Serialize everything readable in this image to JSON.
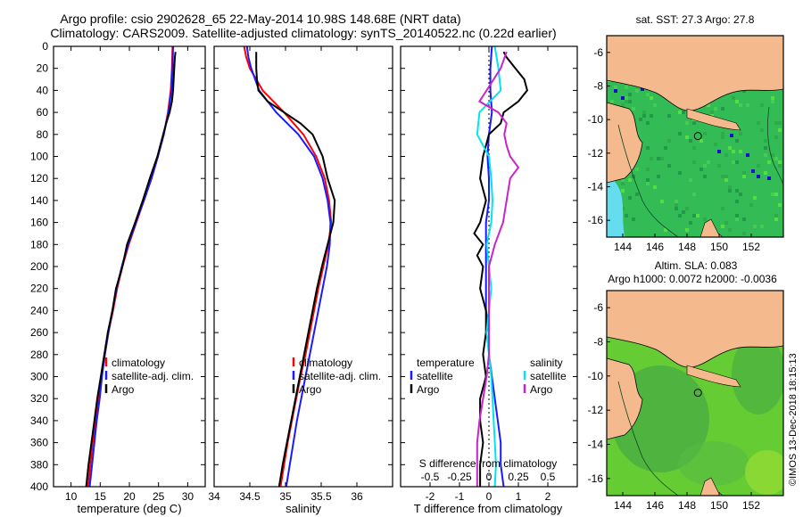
{
  "header": {
    "line1": "Argo profile: csio 2902628_65 22-May-2014 10.98S 148.68E (NRT data)",
    "line2": "Climatology: CARS2009. Satellite-adjusted climatology: synTS_20140522.nc (0.22d earlier)"
  },
  "colors": {
    "climatology": "#ff0000",
    "satellite": "#1a1aff",
    "argo": "#000000",
    "salinity_satellite": "#00e5ee",
    "salinity_argo": "#cc22cc",
    "land": "#f5b98e",
    "ocean_sst": "#33bb55",
    "ocean_sla": "#66cc33"
  },
  "chart_data": [
    {
      "type": "line",
      "title": "",
      "xlabel": "temperature (deg C)",
      "ylabel": "depth",
      "xlim": [
        7,
        33
      ],
      "ylim": [
        400,
        0
      ],
      "xticks": [
        10,
        15,
        20,
        25,
        30
      ],
      "yticks": [
        0,
        20,
        40,
        60,
        80,
        100,
        120,
        140,
        160,
        180,
        200,
        220,
        240,
        260,
        280,
        300,
        320,
        340,
        360,
        380,
        400
      ],
      "legend": [
        "climatology",
        "satellite-adj. clim.",
        "Argo"
      ],
      "legend_position": "lower-right",
      "series": [
        {
          "name": "climatology",
          "color_key": "climatology",
          "y": [
            0,
            20,
            40,
            60,
            80,
            100,
            120,
            140,
            160,
            180,
            200,
            220,
            240,
            260,
            280,
            300,
            320,
            340,
            360,
            380,
            400
          ],
          "x": [
            27.4,
            27.3,
            27.1,
            26.6,
            25.9,
            24.9,
            23.8,
            22.5,
            21.2,
            19.9,
            18.8,
            17.9,
            17.2,
            16.4,
            15.8,
            15.2,
            14.7,
            14.2,
            13.7,
            13.3,
            12.9
          ]
        },
        {
          "name": "satellite-adj. clim.",
          "color_key": "satellite",
          "y": [
            0,
            20,
            40,
            60,
            80,
            100,
            120,
            140,
            160,
            180,
            200,
            220,
            240,
            260,
            280,
            300,
            320,
            340,
            360,
            380,
            400
          ],
          "x": [
            27.5,
            27.4,
            27.2,
            26.7,
            25.9,
            24.9,
            23.8,
            22.5,
            21.1,
            19.8,
            18.7,
            17.8,
            17.1,
            16.4,
            15.8,
            15.3,
            14.9,
            14.4,
            14.0,
            13.6,
            13.2
          ]
        },
        {
          "name": "Argo",
          "color_key": "argo",
          "y": [
            5,
            10,
            20,
            40,
            50,
            60,
            70,
            80,
            100,
            120,
            140,
            160,
            180,
            200,
            220,
            240,
            260,
            280,
            300,
            320,
            340,
            360,
            380,
            400
          ],
          "x": [
            27.9,
            27.8,
            27.7,
            27.5,
            27.3,
            26.9,
            26.3,
            25.8,
            24.8,
            23.5,
            22.3,
            21.0,
            19.6,
            18.8,
            17.7,
            17.1,
            16.3,
            15.7,
            15.1,
            14.5,
            14.0,
            13.5,
            13.0,
            12.6
          ]
        }
      ]
    },
    {
      "type": "line",
      "title": "",
      "xlabel": "salinity",
      "ylabel": "",
      "xlim": [
        34,
        36.5
      ],
      "ylim": [
        400,
        0
      ],
      "xticks": [
        34,
        34.5,
        35,
        35.5,
        36
      ],
      "legend": [
        "climatology",
        "satellite-adj. clim.",
        "Argo"
      ],
      "legend_position": "lower-right",
      "series": [
        {
          "name": "climatology",
          "color_key": "climatology",
          "y": [
            0,
            10,
            20,
            40,
            60,
            80,
            100,
            120,
            140,
            160,
            180,
            200,
            220,
            240,
            260,
            280,
            300,
            320,
            340,
            360,
            380,
            400
          ],
          "x": [
            34.42,
            34.45,
            34.5,
            34.68,
            34.98,
            35.25,
            35.43,
            35.55,
            35.61,
            35.64,
            35.6,
            35.53,
            35.46,
            35.4,
            35.34,
            35.28,
            35.21,
            35.15,
            35.09,
            35.03,
            34.98,
            34.93
          ]
        },
        {
          "name": "satellite-adj. clim.",
          "color_key": "satellite",
          "y": [
            0,
            10,
            20,
            40,
            60,
            80,
            100,
            120,
            140,
            160,
            180,
            200,
            220,
            240,
            260,
            280,
            300,
            320,
            340,
            360,
            380,
            400
          ],
          "x": [
            34.46,
            34.48,
            34.52,
            34.63,
            34.87,
            35.18,
            35.4,
            35.52,
            35.59,
            35.63,
            35.62,
            35.58,
            35.52,
            35.46,
            35.4,
            35.34,
            35.28,
            35.22,
            35.16,
            35.11,
            35.06,
            35.01
          ]
        },
        {
          "name": "Argo",
          "color_key": "argo",
          "y": [
            5,
            10,
            20,
            30,
            40,
            50,
            60,
            70,
            80,
            100,
            120,
            140,
            160,
            180,
            200,
            220,
            240,
            260,
            280,
            300,
            320,
            340,
            360,
            380,
            400
          ],
          "x": [
            34.59,
            34.59,
            34.59,
            34.6,
            34.62,
            34.75,
            34.98,
            35.21,
            35.38,
            35.52,
            35.59,
            35.69,
            35.67,
            35.59,
            35.51,
            35.44,
            35.38,
            35.32,
            35.26,
            35.2,
            35.14,
            35.08,
            35.02,
            34.96,
            34.91
          ]
        }
      ]
    },
    {
      "type": "line",
      "title": "",
      "xlabel": "T difference from climatology",
      "x2label": "S difference from climatology",
      "xlim": [
        -3,
        3
      ],
      "x2lim": [
        -0.75,
        0.75
      ],
      "ylim": [
        400,
        0
      ],
      "xticks": [
        -2,
        -1,
        0,
        1,
        2
      ],
      "x2ticks": [
        "-0.5",
        "-0.25",
        "0",
        "0.25",
        "0.5"
      ],
      "legend_temperature": {
        "header": "temperature",
        "items": [
          "satellite",
          "Argo"
        ]
      },
      "legend_salinity": {
        "header": "salinity",
        "items": [
          "satellite",
          "Argo"
        ]
      },
      "series": [
        {
          "name": "temperature satellite",
          "color_key": "satellite",
          "y": [
            0,
            20,
            40,
            60,
            80,
            100,
            120,
            140,
            160,
            180,
            200,
            220,
            240,
            260,
            280,
            300,
            320,
            340,
            360,
            380,
            400
          ],
          "x": [
            0.1,
            0.05,
            0.05,
            0.1,
            0.0,
            -0.05,
            0.0,
            0.0,
            -0.1,
            -0.1,
            -0.1,
            -0.1,
            -0.1,
            0.0,
            0.0,
            0.1,
            0.2,
            0.3,
            0.4,
            0.4,
            0.5
          ]
        },
        {
          "name": "temperature Argo",
          "color_key": "argo",
          "y": [
            5,
            10,
            20,
            30,
            40,
            50,
            60,
            70,
            80,
            90,
            100,
            120,
            140,
            160,
            170,
            180,
            190,
            200,
            220,
            240,
            260,
            280,
            300,
            320,
            340,
            360,
            380,
            400
          ],
          "x": [
            0.5,
            0.6,
            0.9,
            1.2,
            1.3,
            1.0,
            0.5,
            0.4,
            0.0,
            -0.1,
            -0.2,
            -0.3,
            -0.1,
            -0.3,
            -0.5,
            -0.2,
            -0.4,
            -0.2,
            -0.3,
            -0.1,
            -0.1,
            -0.2,
            -0.1,
            -0.3,
            -0.3,
            -0.2,
            -0.3,
            -0.3
          ]
        },
        {
          "name": "salinity satellite",
          "color_key": "salinity_satellite",
          "y": [
            0,
            20,
            40,
            60,
            80,
            100,
            120,
            140,
            160,
            180,
            200,
            220,
            240,
            260,
            280,
            300,
            320,
            340,
            360,
            380,
            400
          ],
          "x": [
            0.05,
            0.08,
            0.1,
            -0.08,
            -0.1,
            0.0,
            0.02,
            0.03,
            0.02,
            -0.02,
            0.0,
            0.02,
            0.0,
            -0.02,
            0.0,
            0.02,
            0.03,
            0.04,
            0.05,
            0.06,
            0.05
          ]
        },
        {
          "name": "salinity Argo",
          "color_key": "salinity_argo",
          "y": [
            5,
            20,
            30,
            40,
            50,
            60,
            70,
            80,
            90,
            100,
            110,
            120,
            140,
            160,
            180,
            200,
            220,
            240,
            260,
            280,
            300,
            320,
            340,
            360,
            380,
            400
          ],
          "x": [
            0.15,
            0.1,
            0.04,
            -0.02,
            -0.08,
            0.08,
            0.15,
            0.13,
            0.15,
            0.18,
            0.25,
            0.18,
            0.15,
            0.12,
            0.05,
            0.0,
            0.0,
            0.0,
            0.0,
            0.0,
            -0.02,
            -0.05,
            -0.08,
            -0.1,
            -0.1,
            -0.1
          ]
        }
      ]
    }
  ],
  "maps": [
    {
      "title": "sat. SST: 27.3 Argo: 27.8",
      "xticks": [
        "144",
        "146",
        "148",
        "150",
        "152"
      ],
      "yticks": [
        "-6",
        "-8",
        "-10",
        "-12",
        "-14",
        "-16"
      ],
      "xlim": [
        143,
        154
      ],
      "ylim": [
        -17,
        -5
      ],
      "argo_position": [
        148.68,
        -10.98
      ]
    },
    {
      "title_line1": "Altim. SLA: 0.083",
      "title_line2": "Argo h1000: 0.0072 h2000: -0.0036",
      "xticks": [
        "144",
        "146",
        "148",
        "150",
        "152"
      ],
      "yticks": [
        "-6",
        "-8",
        "-10",
        "-12",
        "-14",
        "-16"
      ],
      "xlim": [
        143,
        154
      ],
      "ylim": [
        -17,
        -5
      ],
      "argo_position": [
        148.68,
        -10.98
      ]
    }
  ],
  "credit": "©IMOS 13-Dec-2018 18:15:13"
}
